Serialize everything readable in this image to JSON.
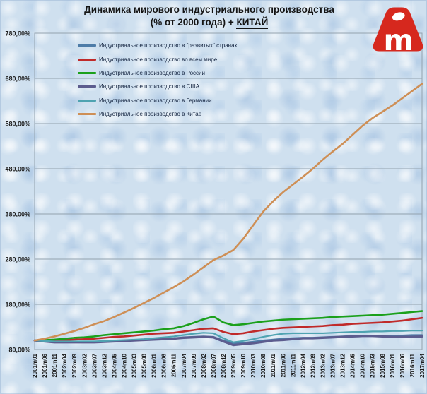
{
  "title": {
    "line1": "Динамика мирового индустриального производства",
    "line2_prefix": "(% от 2000 года) + ",
    "line2_underlined": "КИТАЙ"
  },
  "logo": {
    "name": "aftershock-logo",
    "color": "#d6281e"
  },
  "chart_data": {
    "type": "line",
    "title": "Динамика мирового индустриального производства (% от 2000 года) + КИТАЙ",
    "grid": true,
    "legend_position": "top-left-inside",
    "background": "#cfe0ef",
    "grid_color": "#93a2ae",
    "y_axis": {
      "min": 80,
      "max": 780,
      "tick_values": [
        780,
        680,
        580,
        480,
        380,
        280,
        180,
        80
      ],
      "tick_labels": [
        "780,00%",
        "680,00%",
        "580,00%",
        "480,00%",
        "380,00%",
        "280,00%",
        "180,00%",
        "80,00%"
      ]
    },
    "x_axis": {
      "tick_labels": [
        "2001m01",
        "2001m06",
        "2001m11",
        "2002m04",
        "2002m09",
        "2003m02",
        "2003m07",
        "2003m12",
        "2004m05",
        "2004m10",
        "2005m03",
        "2005m08",
        "2006m01",
        "2006m06",
        "2006m11",
        "2007m04",
        "2007m09",
        "2008m02",
        "2008m07",
        "2008m12",
        "2009m05",
        "2009m10",
        "2010m03",
        "2010m08",
        "2011m01",
        "2011m06",
        "2011m11",
        "2012m04",
        "2012m09",
        "2013m02",
        "2013m07",
        "2013m12",
        "2014m05",
        "2014m10",
        "2015m03",
        "2015m08",
        "2016m01",
        "2016m06",
        "2016m11",
        "2017m04"
      ]
    },
    "series": [
      {
        "name": "Индустриальное производство в \"развитых\" странах",
        "color": "#4e7ca8",
        "width": 2.4,
        "values": [
          100,
          99,
          97,
          97,
          97,
          97,
          97,
          98,
          99,
          100,
          101,
          102,
          103,
          104,
          105,
          107,
          108,
          109,
          108,
          100,
          94,
          95,
          97,
          100,
          102,
          104,
          105,
          106,
          106,
          107,
          108,
          109,
          110,
          111,
          111,
          111,
          111,
          111,
          112,
          112
        ]
      },
      {
        "name": "Индустриальное производство во всем мире",
        "color": "#c02a2a",
        "width": 2.6,
        "values": [
          100,
          100,
          100,
          101,
          102,
          103,
          104,
          106,
          108,
          109,
          111,
          113,
          115,
          116,
          117,
          120,
          123,
          126,
          127,
          119,
          114,
          116,
          120,
          123,
          126,
          128,
          129,
          130,
          131,
          132,
          134,
          135,
          137,
          138,
          139,
          140,
          142,
          144,
          147,
          150
        ]
      },
      {
        "name": "Индустриальное производство в России",
        "color": "#1ba01b",
        "width": 2.6,
        "values": [
          100,
          101,
          102,
          104,
          106,
          107,
          109,
          112,
          114,
          116,
          118,
          120,
          122,
          125,
          127,
          132,
          139,
          147,
          153,
          140,
          134,
          136,
          139,
          142,
          144,
          146,
          147,
          148,
          149,
          150,
          152,
          153,
          154,
          155,
          156,
          157,
          159,
          161,
          163,
          165
        ]
      },
      {
        "name": "Индустриальное производство в США",
        "color": "#5c5c8e",
        "width": 3.2,
        "values": [
          100,
          98,
          96,
          96,
          96,
          96,
          96,
          97,
          98,
          99,
          100,
          101,
          102,
          103,
          104,
          106,
          107,
          108,
          107,
          98,
          90,
          92,
          94,
          97,
          100,
          101,
          103,
          105,
          105,
          106,
          107,
          108,
          109,
          110,
          110,
          109,
          108,
          108,
          108,
          109
        ]
      },
      {
        "name": "Индустриальное производство в Германии",
        "color": "#4fa3b1",
        "width": 2.2,
        "values": [
          100,
          99,
          98,
          98,
          98,
          98,
          98,
          99,
          100,
          101,
          102,
          103,
          105,
          107,
          109,
          112,
          115,
          117,
          116,
          105,
          96,
          99,
          103,
          108,
          112,
          115,
          116,
          116,
          116,
          116,
          117,
          118,
          119,
          119,
          120,
          120,
          121,
          121,
          122,
          122
        ]
      },
      {
        "name": "Индустриальное производство в Китае",
        "color": "#ce8f56",
        "width": 2.6,
        "values": [
          100,
          104,
          109,
          115,
          121,
          128,
          136,
          143,
          152,
          162,
          172,
          183,
          194,
          206,
          218,
          231,
          246,
          262,
          278,
          288,
          300,
          325,
          355,
          385,
          408,
          428,
          445,
          462,
          480,
          500,
          518,
          535,
          555,
          575,
          592,
          606,
          620,
          636,
          652,
          668
        ]
      }
    ]
  }
}
